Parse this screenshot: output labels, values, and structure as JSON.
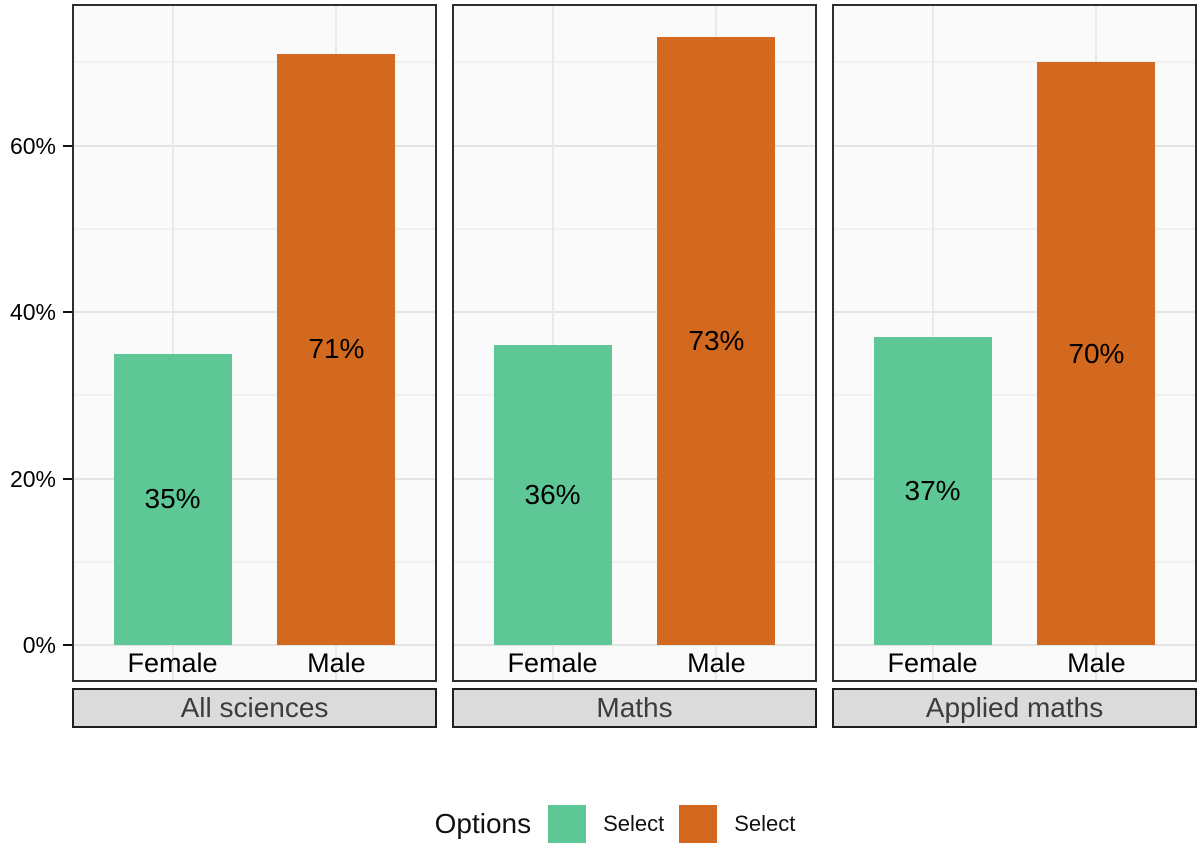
{
  "chart_data": {
    "type": "bar",
    "title": "",
    "xlabel": "",
    "ylabel": "",
    "categories": [
      "Female",
      "Male"
    ],
    "facets": [
      {
        "label": "All sciences",
        "bars": [
          {
            "category": "Female",
            "value": 35,
            "value_label": "35%",
            "series": "Select"
          },
          {
            "category": "Male",
            "value": 71,
            "value_label": "71%",
            "series": "Select"
          }
        ]
      },
      {
        "label": "Maths",
        "bars": [
          {
            "category": "Female",
            "value": 36,
            "value_label": "36%",
            "series": "Select"
          },
          {
            "category": "Male",
            "value": 73,
            "value_label": "73%",
            "series": "Select"
          }
        ]
      },
      {
        "label": "Applied maths",
        "bars": [
          {
            "category": "Female",
            "value": 37,
            "value_label": "37%",
            "series": "Select"
          },
          {
            "category": "Male",
            "value": 70,
            "value_label": "70%",
            "series": "Select"
          }
        ]
      }
    ],
    "y_axis": {
      "ticks": [
        {
          "label": "0%",
          "value": 0
        },
        {
          "label": "20%",
          "value": 20
        },
        {
          "label": "40%",
          "value": 40
        },
        {
          "label": "60%",
          "value": 60
        }
      ],
      "minor_values": [
        10,
        30,
        50,
        70
      ]
    },
    "ylim": [
      0,
      77
    ],
    "grid": {
      "major": true,
      "minor": true,
      "vertical_at_categories": true
    },
    "legend": {
      "title": "Options",
      "position": "bottom",
      "entries": [
        {
          "label": "Select",
          "color": "#5ec796"
        },
        {
          "label": "Select",
          "color": "#d2691e"
        }
      ]
    },
    "colors": {
      "female_bar": "#5ec796",
      "male_bar": "#d2691e",
      "panel_background": "#fafafa",
      "grid_major": "#e4e4e4",
      "grid_minor": "#f0f0f0",
      "panel_border": "#2e2e2e",
      "strip_background": "#dbdbdb",
      "strip_text": "#3c3c3c",
      "axis_text": "#000000",
      "value_label_text": "#000000"
    }
  }
}
